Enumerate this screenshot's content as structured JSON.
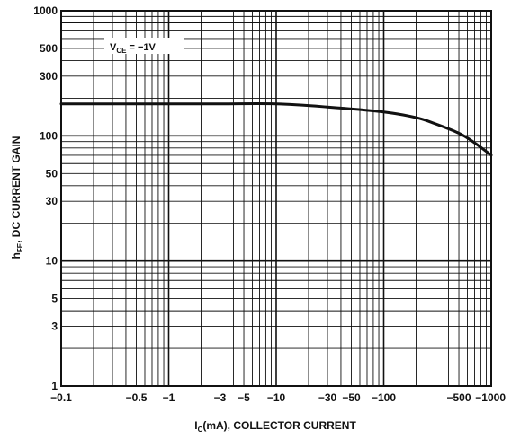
{
  "chart_data": {
    "type": "line",
    "y_scale": "log",
    "x_scale": "log",
    "ylabel_main": "h",
    "ylabel_sub": "FE",
    "ylabel_rest": ", DC CURRENT GAIN",
    "xlabel_main": "I",
    "xlabel_sub": "C",
    "xlabel_rest": "(mA), COLLECTOR CURRENT",
    "annotation": {
      "main": "V",
      "sub": "CE",
      "rest": " = −1V"
    },
    "x_ticks": [
      {
        "value": 0.1,
        "label": "−0.1"
      },
      {
        "value": 0.5,
        "label": "−0.5"
      },
      {
        "value": 1,
        "label": "−1"
      },
      {
        "value": 3,
        "label": "−3"
      },
      {
        "value": 5,
        "label": "−5"
      },
      {
        "value": 10,
        "label": "−10"
      },
      {
        "value": 30,
        "label": "−30"
      },
      {
        "value": 50,
        "label": "−50"
      },
      {
        "value": 100,
        "label": "−100"
      },
      {
        "value": 500,
        "label": "−500"
      },
      {
        "value": 1000,
        "label": "−1000"
      }
    ],
    "y_ticks": [
      {
        "value": 1,
        "label": "1"
      },
      {
        "value": 3,
        "label": "3"
      },
      {
        "value": 5,
        "label": "5"
      },
      {
        "value": 10,
        "label": "10"
      },
      {
        "value": 30,
        "label": "30"
      },
      {
        "value": 50,
        "label": "50"
      },
      {
        "value": 100,
        "label": "100"
      },
      {
        "value": 300,
        "label": "300"
      },
      {
        "value": 500,
        "label": "500"
      },
      {
        "value": 1000,
        "label": "1000"
      }
    ],
    "xlim": [
      0.1,
      1000
    ],
    "ylim": [
      1,
      1000
    ],
    "grid": true,
    "series": [
      {
        "x": [
          0.1,
          0.3,
          1,
          3,
          10,
          30,
          100,
          200,
          300,
          500,
          700,
          1000
        ],
        "y": [
          180,
          180,
          180,
          180,
          180,
          170,
          155,
          140,
          125,
          105,
          88,
          70
        ]
      }
    ]
  }
}
